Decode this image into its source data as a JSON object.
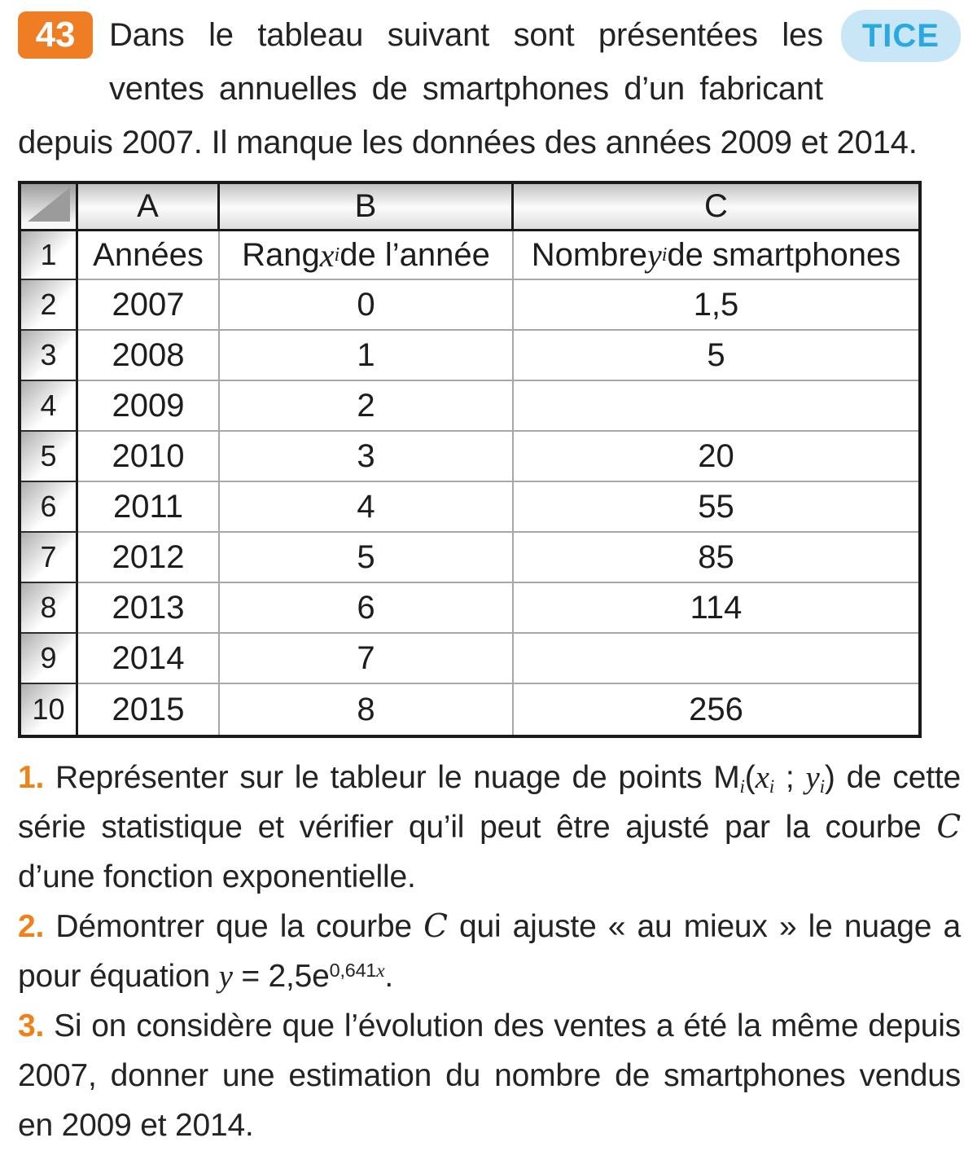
{
  "exercise": {
    "number": "43",
    "tag": "TICE"
  },
  "intro": {
    "text": "Dans le tableau suivant sont présentées les ventes annuelles de smartphones d’un fabricant depuis 2007. Il manque les données des années 2009 et 2014."
  },
  "spreadsheet": {
    "column_headers": [
      "A",
      "B",
      "C"
    ],
    "row1": {
      "num": "1",
      "a": "Années",
      "b_pre": "Rang ",
      "b_var": "x",
      "b_sub": "i",
      "b_post": " de l’année",
      "c_pre": "Nombre ",
      "c_var": "y",
      "c_sub": "i",
      "c_post": " de smartphones"
    },
    "rows": [
      {
        "num": "2",
        "year": "2007",
        "rank": "0",
        "count": "1,5"
      },
      {
        "num": "3",
        "year": "2008",
        "rank": "1",
        "count": "5"
      },
      {
        "num": "4",
        "year": "2009",
        "rank": "2",
        "count": ""
      },
      {
        "num": "5",
        "year": "2010",
        "rank": "3",
        "count": "20"
      },
      {
        "num": "6",
        "year": "2011",
        "rank": "4",
        "count": "55"
      },
      {
        "num": "7",
        "year": "2012",
        "rank": "5",
        "count": "85"
      },
      {
        "num": "8",
        "year": "2013",
        "rank": "6",
        "count": "114"
      },
      {
        "num": "9",
        "year": "2014",
        "rank": "7",
        "count": ""
      },
      {
        "num": "10",
        "year": "2015",
        "rank": "8",
        "count": "256"
      }
    ]
  },
  "questions": {
    "q1": {
      "num": "1.",
      "t1": " Représenter sur le tableur le nuage de points M",
      "m_sub": "i",
      "t2": "(",
      "x_var": "x",
      "x_sub": "i",
      "t3": " ; ",
      "y_var": "y",
      "y_sub": "i",
      "t4": ") de cette série statistique et vérifier qu’il peut être ajusté par la courbe ",
      "curve": "C",
      "t5": " d’une fonction exponentielle."
    },
    "q2": {
      "num": "2.",
      "t1": " Démontrer que la courbe ",
      "curve": "C",
      "t2": " qui ajuste « au mieux » le nuage a pour équation ",
      "y_var": "y",
      "t3": " = 2,5e",
      "exp_num": "0,641",
      "exp_var": "x",
      "t4": "."
    },
    "q3": {
      "num": "3.",
      "t1": " Si on considère que l’évolution des ventes a été la même depuis 2007, donner une estimation du nombre de smartphones vendus en 2009 et 2014."
    }
  },
  "colors": {
    "accent_orange": "#ee7d23",
    "question_number_orange": "#f08119",
    "tice_text": "#29a9e1",
    "tice_background": "#c9e6f6",
    "table_border": "#1a1a1a",
    "gridline": "#a8a8a8"
  }
}
